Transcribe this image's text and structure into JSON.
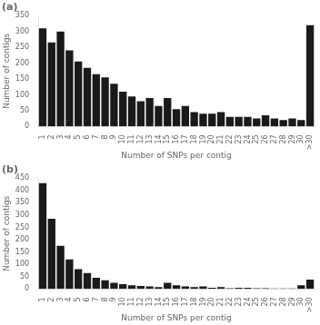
{
  "chart_data": [
    {
      "type": "bar",
      "title": "(a)",
      "x_label": "Number of SNPs per contig",
      "y_label": "Number of contigs",
      "categories": [
        "1",
        "2",
        "3",
        "4",
        "5",
        "6",
        "7",
        "8",
        "9",
        "10",
        "11",
        "12",
        "13",
        "14",
        "15",
        "16",
        "17",
        "18",
        "19",
        "20",
        "21",
        "22",
        "23",
        "24",
        "25",
        "26",
        "27",
        "28",
        "29",
        "30",
        ">30"
      ],
      "values": [
        310,
        265,
        300,
        240,
        205,
        185,
        165,
        155,
        135,
        110,
        95,
        80,
        90,
        65,
        90,
        55,
        65,
        45,
        40,
        40,
        45,
        30,
        30,
        30,
        25,
        35,
        25,
        20,
        25,
        20,
        320
      ],
      "color": "#1a1a1a",
      "ylim": [
        0,
        350
      ],
      "yticks": [
        0,
        50,
        100,
        150,
        200,
        250,
        300,
        350
      ],
      "grid": false
    },
    {
      "type": "bar",
      "title": "(b)",
      "x_label": "Number of SNPs per contig",
      "y_label": "Number of contigs",
      "categories": [
        "1",
        "2",
        "3",
        "4",
        "5",
        "6",
        "7",
        "8",
        "9",
        "10",
        "11",
        "12",
        "13",
        "14",
        "15",
        "16",
        "17",
        "18",
        "19",
        "20",
        "21",
        "22",
        "23",
        "24",
        "25",
        "26",
        "27",
        "28",
        "29",
        "30",
        ">30"
      ],
      "values": [
        430,
        285,
        175,
        120,
        80,
        65,
        45,
        35,
        25,
        20,
        15,
        12,
        10,
        8,
        25,
        15,
        10,
        8,
        10,
        5,
        8,
        3,
        5,
        5,
        3,
        3,
        2,
        2,
        2,
        15,
        38
      ],
      "color": "#1a1a1a",
      "ylim": [
        0,
        450
      ],
      "yticks": [
        0,
        50,
        100,
        150,
        200,
        250,
        300,
        350,
        400,
        450
      ],
      "grid": false
    }
  ]
}
